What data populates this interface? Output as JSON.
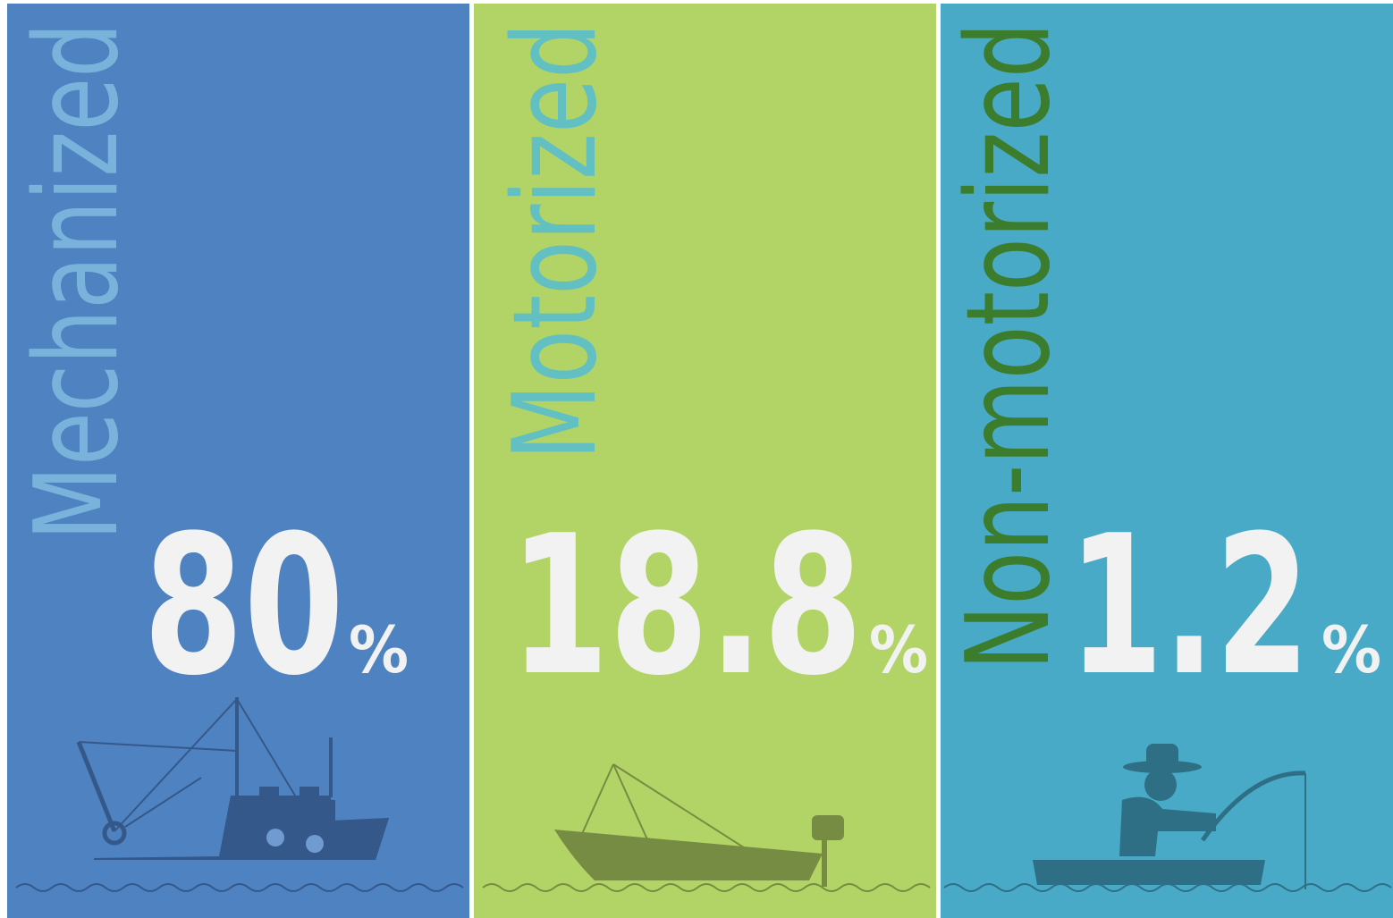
{
  "panels": [
    {
      "label": "Mechanized",
      "value": 80,
      "unit": "%"
    },
    {
      "label": "Motorized",
      "value": 18.8,
      "unit": "%"
    },
    {
      "label": "Non-motorized",
      "value": 1.2,
      "unit": "%"
    }
  ]
}
